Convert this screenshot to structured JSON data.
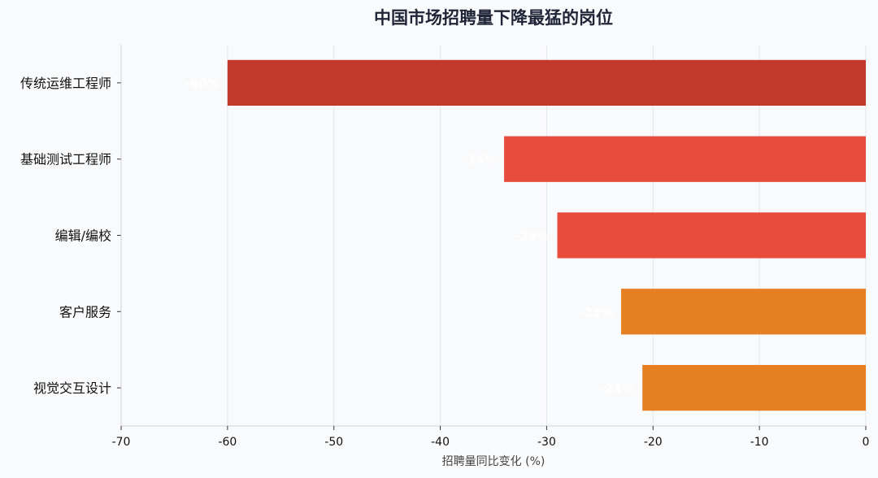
{
  "chart_data": {
    "type": "bar",
    "orientation": "horizontal",
    "title": "中国市场招聘量下降最猛的岗位",
    "xlabel": "招聘量同比变化 (%)",
    "ylabel": "",
    "xlim": [
      -70,
      0
    ],
    "xticks": [
      -70,
      -60,
      -50,
      -40,
      -30,
      -20,
      -10,
      0
    ],
    "grid": true,
    "categories": [
      "传统运维工程师",
      "基础测试工程师",
      "编辑/编校",
      "客户服务",
      "视觉交互设计"
    ],
    "values": [
      -60,
      -34,
      -29,
      -23,
      -21
    ],
    "data_labels": [
      "-60%",
      "-34%",
      "-29%",
      "-23%",
      "-21%"
    ],
    "colors": [
      "#c0392b",
      "#e74c3c",
      "#e74c3c",
      "#e67e22",
      "#e67e22"
    ]
  }
}
